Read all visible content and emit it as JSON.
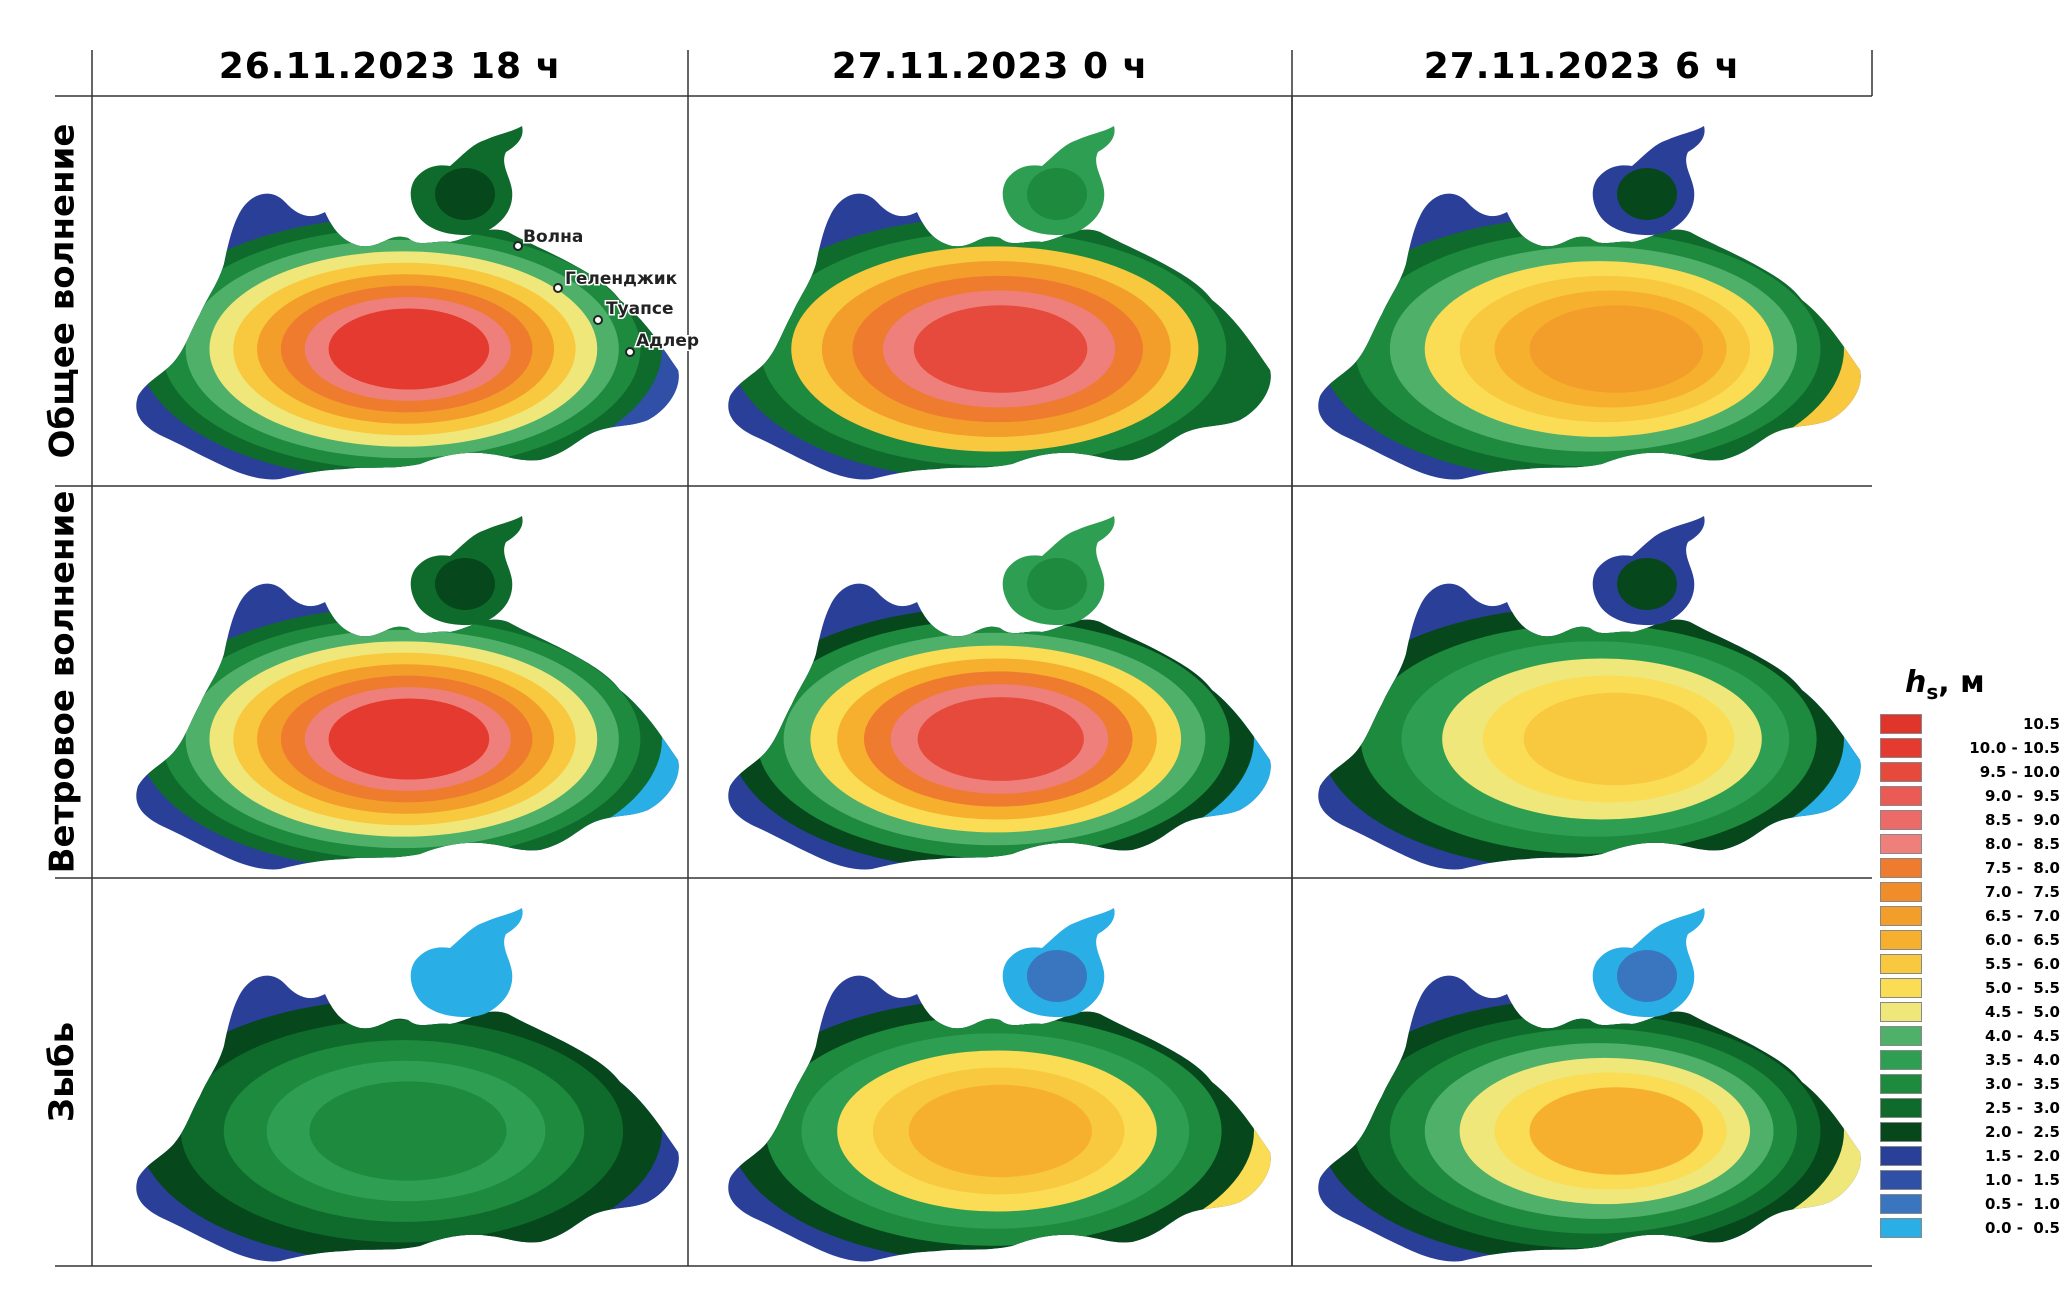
{
  "columns": [
    {
      "label": "26.11.2023 18 ч"
    },
    {
      "label": "27.11.2023 0 ч"
    },
    {
      "label": "27.11.2023 6 ч"
    }
  ],
  "rows": [
    {
      "label": "Общее волнение"
    },
    {
      "label": "Ветровое волнение"
    },
    {
      "label": "Зыбь"
    }
  ],
  "map_labels": [
    "Волна",
    "Геленджик",
    "Туапсе",
    "Адлер"
  ],
  "legend": {
    "title_var": "h",
    "title_sub": "s",
    "title_unit": ", м",
    "classes": [
      {
        "label": "10.5",
        "color": "#e0352b"
      },
      {
        "label": "10.0 - 10.5",
        "color": "#e43a30"
      },
      {
        "label": "9.5 - 10.0",
        "color": "#e64a3c"
      },
      {
        "label": "9.0 -  9.5",
        "color": "#ea5b55"
      },
      {
        "label": "8.5 -  9.0",
        "color": "#ec6a68"
      },
      {
        "label": "8.0 -  8.5",
        "color": "#ef7f7b"
      },
      {
        "label": "7.5 -  8.0",
        "color": "#ee7b2e"
      },
      {
        "label": "7.0 -  7.5",
        "color": "#f08c2a"
      },
      {
        "label": "6.5 -  7.0",
        "color": "#f39d2a"
      },
      {
        "label": "6.0 -  6.5",
        "color": "#f6b02e"
      },
      {
        "label": "5.5 -  6.0",
        "color": "#f8c83e"
      },
      {
        "label": "5.0 -  5.5",
        "color": "#fadc55"
      },
      {
        "label": "4.5 -  5.0",
        "color": "#efe77a"
      },
      {
        "label": "4.0 -  4.5",
        "color": "#4fb06a"
      },
      {
        "label": "3.5 -  4.0",
        "color": "#2e9f52"
      },
      {
        "label": "3.0 -  3.5",
        "color": "#1d8a3e"
      },
      {
        "label": "2.5 -  3.0",
        "color": "#0f6b2c"
      },
      {
        "label": "2.0 -  2.5",
        "color": "#06481c"
      },
      {
        "label": "1.5 -  2.0",
        "color": "#2a3f98"
      },
      {
        "label": "1.0 -  1.5",
        "color": "#3050a8"
      },
      {
        "label": "0.5 -  1.0",
        "color": "#3a76c0"
      },
      {
        "label": "0.0 -  0.5",
        "color": "#29aee6"
      }
    ]
  },
  "panels": [
    [
      {
        "sea": [
          "#0f6b2c",
          "#1d8a3e",
          "#4fb06a",
          "#efe77a",
          "#f8c83e",
          "#f39d2a",
          "#ee7b2e",
          "#ef7f7b",
          "#e43a30"
        ],
        "east": "#3050a8",
        "azov": [
          "#0f6b2c",
          "#06481c"
        ],
        "shore": "#2a3f98"
      },
      {
        "sea": [
          "#0f6b2c",
          "#1d8a3e",
          "#f8c83e",
          "#f39d2a",
          "#ee7b2e",
          "#ef7f7b",
          "#e64a3c"
        ],
        "east": "#0f6b2c",
        "azov": [
          "#2e9f52",
          "#1d8a3e"
        ],
        "shore": "#2a3f98"
      },
      {
        "sea": [
          "#0f6b2c",
          "#1d8a3e",
          "#4fb06a",
          "#fadc55",
          "#f8c83e",
          "#f6b02e",
          "#f39d2a"
        ],
        "east": "#f8c83e",
        "azov": [
          "#2a3f98",
          "#06481c"
        ],
        "shore": "#2a3f98"
      }
    ],
    [
      {
        "sea": [
          "#0f6b2c",
          "#1d8a3e",
          "#4fb06a",
          "#efe77a",
          "#f8c83e",
          "#f39d2a",
          "#ee7b2e",
          "#ef7f7b",
          "#e43a30"
        ],
        "east": "#29aee6",
        "azov": [
          "#0f6b2c",
          "#06481c"
        ],
        "shore": "#2a3f98"
      },
      {
        "sea": [
          "#06481c",
          "#1d8a3e",
          "#4fb06a",
          "#fadc55",
          "#f6b02e",
          "#ee7b2e",
          "#ef7f7b",
          "#e64a3c"
        ],
        "east": "#29aee6",
        "azov": [
          "#2e9f52",
          "#1d8a3e"
        ],
        "shore": "#2a3f98"
      },
      {
        "sea": [
          "#06481c",
          "#1d8a3e",
          "#2e9f52",
          "#efe77a",
          "#fadc55",
          "#f8c83e"
        ],
        "east": "#29aee6",
        "azov": [
          "#2a3f98",
          "#06481c"
        ],
        "shore": "#2a3f98"
      }
    ],
    [
      {
        "sea": [
          "#06481c",
          "#0f6b2c",
          "#1d8a3e",
          "#2e9f52",
          "#1d8a3e"
        ],
        "east": "#2a3f98",
        "azov": [
          "#29aee6",
          "#29aee6"
        ],
        "shore": "#2a3f98"
      },
      {
        "sea": [
          "#06481c",
          "#1d8a3e",
          "#2e9f52",
          "#fadc55",
          "#f8c83e",
          "#f6b02e"
        ],
        "east": "#fadc55",
        "azov": [
          "#29aee6",
          "#3a76c0"
        ],
        "shore": "#2a3f98"
      },
      {
        "sea": [
          "#06481c",
          "#0f6b2c",
          "#1d8a3e",
          "#4fb06a",
          "#efe77a",
          "#fadc55",
          "#f6b02e"
        ],
        "east": "#efe77a",
        "azov": [
          "#29aee6",
          "#3a76c0"
        ],
        "shore": "#2a3f98"
      }
    ]
  ]
}
